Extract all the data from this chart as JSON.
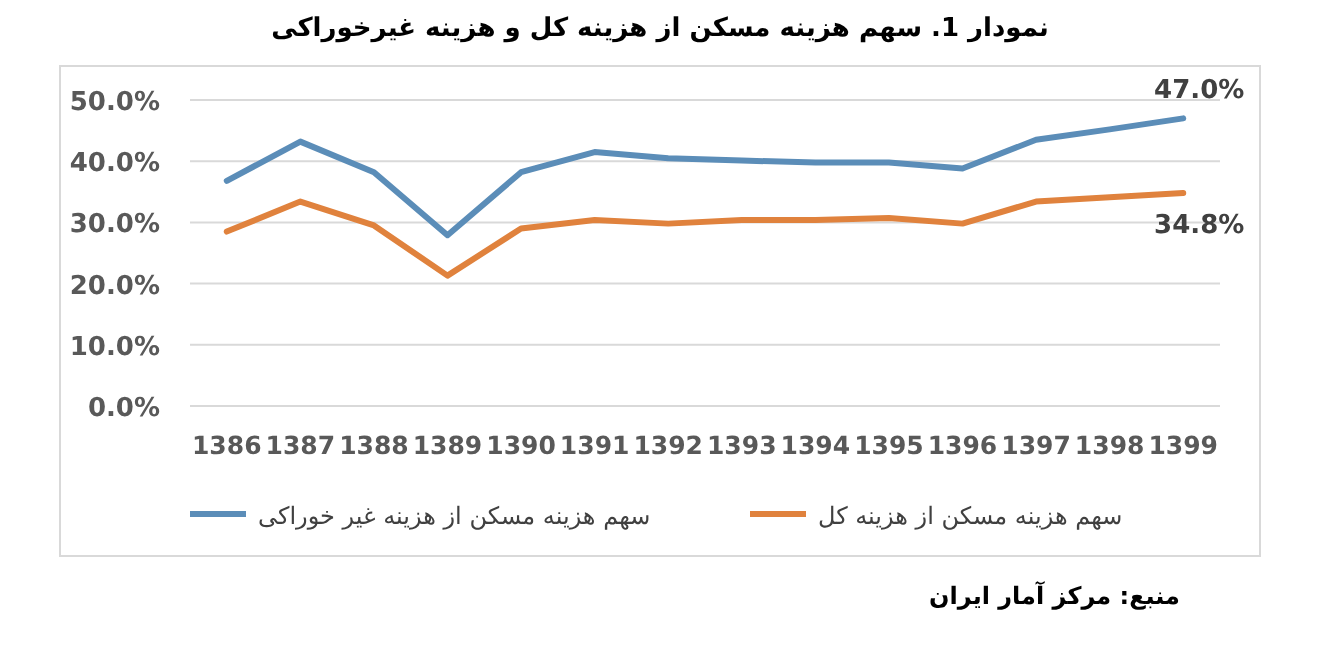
{
  "chart_data": {
    "type": "line",
    "title": "نمودار 1. سهم هزینه مسکن از هزینه کل و هزینه غیرخوراکی",
    "categories": [
      "1386",
      "1387",
      "1388",
      "1389",
      "1390",
      "1391",
      "1392",
      "1393",
      "1394",
      "1395",
      "1396",
      "1397",
      "1398",
      "1399"
    ],
    "series": [
      {
        "name": "سهم هزینه مسکن از هزینه غیر خوراکی",
        "color": "#5b8db8",
        "values": [
          36.8,
          43.2,
          38.2,
          27.9,
          38.2,
          41.5,
          40.5,
          40.1,
          39.8,
          39.8,
          38.8,
          43.5,
          45.2,
          47.0
        ],
        "value_labels": [
          null,
          null,
          null,
          null,
          null,
          null,
          null,
          null,
          null,
          null,
          null,
          null,
          null,
          "47.0%"
        ]
      },
      {
        "name": "سهم هزینه مسکن از هزینه کل",
        "color": "#e0823d",
        "values": [
          28.5,
          33.4,
          29.5,
          21.3,
          29.0,
          30.4,
          29.8,
          30.4,
          30.4,
          30.7,
          29.8,
          33.4,
          34.1,
          34.8
        ],
        "value_labels": [
          null,
          null,
          null,
          null,
          null,
          null,
          null,
          null,
          null,
          null,
          null,
          null,
          null,
          "34.8%"
        ]
      }
    ],
    "ylim": [
      0,
      50
    ],
    "yticks": [
      {
        "value": 0,
        "label": "0.0%"
      },
      {
        "value": 10,
        "label": "10.0%"
      },
      {
        "value": 20,
        "label": "20.0%"
      },
      {
        "value": 30,
        "label": "30.0%"
      },
      {
        "value": 40,
        "label": "40.0%"
      },
      {
        "value": 50,
        "label": "50.0%"
      }
    ],
    "grid": "y",
    "legend": "bottom",
    "marker": "none",
    "line_style": "solid",
    "annotations": [
      "منبع: مرکز آمار ایران"
    ]
  }
}
